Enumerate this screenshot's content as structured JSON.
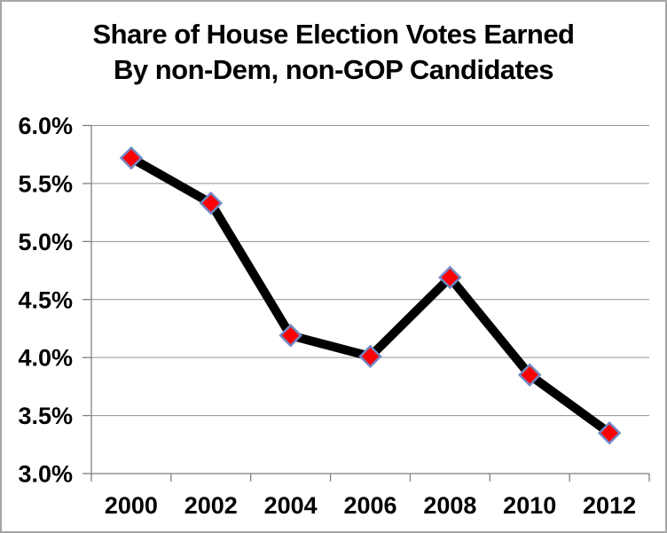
{
  "chart_data": {
    "type": "line",
    "title_lines": [
      "Share of House Election Votes Earned",
      "By non-Dem, non-GOP Candidates"
    ],
    "categories": [
      "2000",
      "2002",
      "2004",
      "2006",
      "2008",
      "2010",
      "2012"
    ],
    "values": [
      5.72,
      5.33,
      4.19,
      4.01,
      4.69,
      3.85,
      3.35
    ],
    "ylim": [
      3.0,
      6.0
    ],
    "yticks": {
      "values": [
        3.0,
        3.5,
        4.0,
        4.5,
        5.0,
        5.5,
        6.0
      ],
      "labels": [
        "3.0%",
        "3.5%",
        "4.0%",
        "4.5%",
        "5.0%",
        "5.5%",
        "6.0%"
      ]
    },
    "xlabel": "",
    "ylabel": "",
    "grid": "horizontal",
    "legend": "none",
    "marker_shape": "diamond",
    "colors": {
      "line": "#000000",
      "marker_fill": "#fb0207",
      "marker_border": "#7189c5",
      "gridline": "#919191",
      "axis": "#7f7f7f",
      "text": "#000000",
      "background": "#ffffff",
      "frame_border": "#a6a6a6"
    }
  }
}
